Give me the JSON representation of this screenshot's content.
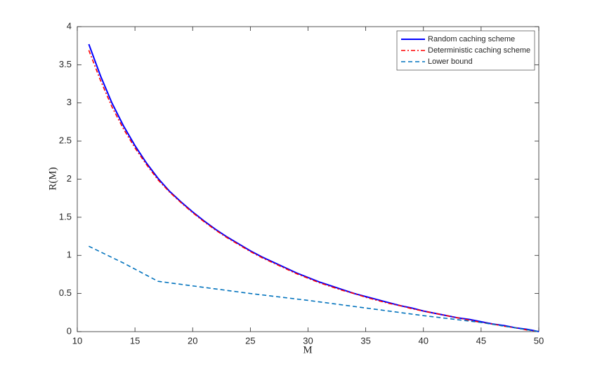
{
  "chart_data": {
    "type": "line",
    "xlabel": "M",
    "ylabel": "R(M)",
    "xlim": [
      10,
      50
    ],
    "xticks": [
      10,
      15,
      20,
      25,
      30,
      35,
      40,
      45,
      50
    ],
    "ylim": [
      0,
      4
    ],
    "yticks": [
      0,
      0.5,
      1,
      1.5,
      2,
      2.5,
      3,
      3.5,
      4
    ],
    "legend": "top-right",
    "series": [
      {
        "name": "Random caching scheme",
        "color": "#0000ff",
        "style": "solid",
        "x": [
          11,
          12,
          13,
          14,
          15,
          16,
          17,
          18,
          19,
          20,
          21,
          22,
          23,
          24,
          25,
          26,
          27,
          28,
          29,
          30,
          31,
          32,
          33,
          34,
          35,
          36,
          37,
          38,
          39,
          40,
          41,
          42,
          43,
          44,
          45,
          46,
          47,
          48,
          49,
          50
        ],
        "values": [
          3.77,
          3.36,
          3.0,
          2.7,
          2.44,
          2.21,
          2.01,
          1.84,
          1.7,
          1.57,
          1.45,
          1.34,
          1.24,
          1.15,
          1.06,
          0.98,
          0.91,
          0.84,
          0.77,
          0.71,
          0.65,
          0.6,
          0.55,
          0.5,
          0.46,
          0.42,
          0.38,
          0.34,
          0.31,
          0.27,
          0.24,
          0.21,
          0.18,
          0.16,
          0.13,
          0.1,
          0.08,
          0.05,
          0.03,
          0
        ]
      },
      {
        "name": "Deterministic caching scheme",
        "color": "#ff0000",
        "style": "dashdot",
        "x": [
          11,
          12,
          13,
          14,
          15,
          16,
          17,
          18,
          19,
          20,
          21,
          22,
          23,
          24,
          25,
          26,
          27,
          28,
          29,
          30,
          31,
          32,
          33,
          34,
          35,
          36,
          37,
          38,
          39,
          40,
          41,
          42,
          43,
          44,
          45,
          46,
          47,
          48,
          49,
          50
        ],
        "values": [
          3.69,
          3.3,
          2.95,
          2.66,
          2.41,
          2.19,
          1.99,
          1.83,
          1.69,
          1.56,
          1.44,
          1.33,
          1.23,
          1.14,
          1.05,
          0.97,
          0.9,
          0.83,
          0.76,
          0.7,
          0.64,
          0.59,
          0.54,
          0.5,
          0.45,
          0.41,
          0.37,
          0.34,
          0.3,
          0.27,
          0.24,
          0.21,
          0.18,
          0.15,
          0.12,
          0.1,
          0.07,
          0.05,
          0.02,
          0
        ]
      },
      {
        "name": "Lower bound",
        "color": "#0072bd",
        "style": "dashed",
        "x": [
          11,
          14,
          17,
          20,
          25,
          30,
          35,
          40,
          45,
          50
        ],
        "values": [
          1.12,
          0.9,
          0.66,
          0.6,
          0.5,
          0.41,
          0.31,
          0.21,
          0.12,
          0
        ]
      }
    ]
  }
}
